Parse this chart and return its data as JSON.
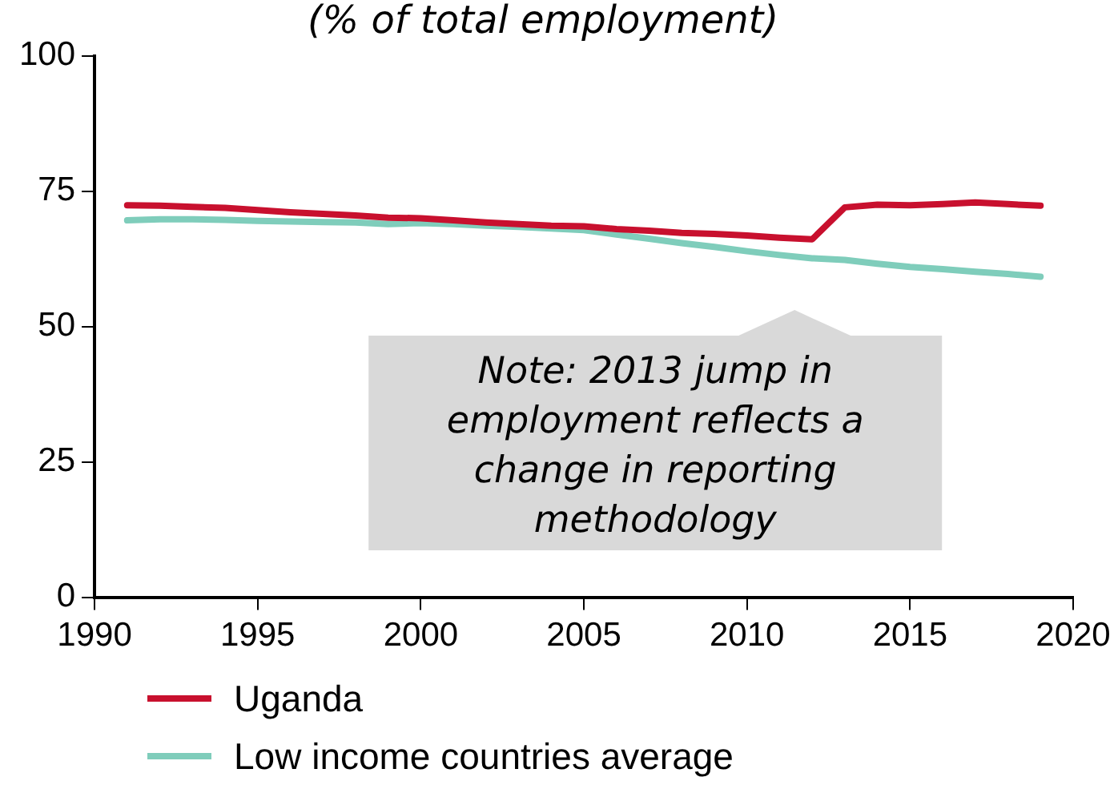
{
  "chart_data": {
    "type": "line",
    "title": "(% of total employment)",
    "x": [
      1991,
      1992,
      1993,
      1994,
      1995,
      1996,
      1997,
      1998,
      1999,
      2000,
      2001,
      2002,
      2003,
      2004,
      2005,
      2006,
      2007,
      2008,
      2009,
      2010,
      2011,
      2012,
      2013,
      2014,
      2015,
      2016,
      2017,
      2018,
      2019
    ],
    "series": [
      {
        "name": "Uganda",
        "color": "#c8102e",
        "values": [
          72.4,
          72.3,
          72.1,
          71.9,
          71.5,
          71.1,
          70.8,
          70.5,
          70.1,
          70.0,
          69.6,
          69.2,
          68.9,
          68.6,
          68.5,
          68.0,
          67.7,
          67.3,
          67.1,
          66.8,
          66.4,
          66.1,
          72.0,
          72.5,
          72.4,
          72.6,
          72.9,
          72.6,
          72.3
        ]
      },
      {
        "name": "Low income countries average",
        "color": "#7fcdbb",
        "values": [
          69.6,
          69.8,
          69.8,
          69.7,
          69.5,
          69.4,
          69.3,
          69.2,
          68.9,
          69.1,
          68.9,
          68.6,
          68.4,
          68.1,
          67.8,
          67.0,
          66.2,
          65.4,
          64.7,
          63.9,
          63.2,
          62.6,
          62.3,
          61.6,
          61.0,
          60.6,
          60.1,
          59.7,
          59.2
        ]
      }
    ],
    "xlim": [
      1990,
      2020
    ],
    "xticks": [
      1990,
      1995,
      2000,
      2005,
      2010,
      2015,
      2020
    ],
    "ylim": [
      0,
      100
    ],
    "yticks": [
      0,
      25,
      50,
      75,
      100
    ],
    "annotations": [
      "Note: 2013 jump in employment reflects a change in reporting methodology"
    ],
    "grid": false,
    "legend": "bottom",
    "marker": "none",
    "line_style": "solid"
  }
}
